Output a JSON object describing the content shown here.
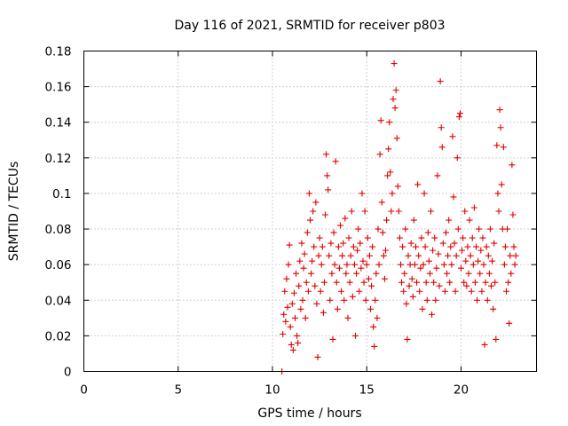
{
  "chart_data": {
    "type": "scatter",
    "title": "Day 116 of 2021, SRMTID for receiver p803",
    "xlabel": "GPS time / hours",
    "ylabel": "SRMTID / TECUs",
    "xlim": [
      0,
      24
    ],
    "ylim": [
      0,
      0.18
    ],
    "xticks": [
      0,
      5,
      10,
      15,
      20
    ],
    "yticks": [
      0,
      0.02,
      0.04,
      0.06,
      0.08,
      0.1,
      0.12,
      0.14,
      0.16,
      0.18
    ],
    "xtick_labels": [
      "0",
      "5",
      "10",
      "15",
      "20"
    ],
    "ytick_labels": [
      "0",
      "0.02",
      "0.04",
      "0.06",
      "0.08",
      "0.1",
      "0.12",
      "0.14",
      "0.16",
      "0.18"
    ],
    "grid": true,
    "marker": "+",
    "color": "#e00000",
    "series": [
      {
        "name": "SRMTID",
        "points": [
          [
            10.5,
            0.0
          ],
          [
            10.55,
            0.021
          ],
          [
            10.6,
            0.032
          ],
          [
            10.65,
            0.045
          ],
          [
            10.7,
            0.028
          ],
          [
            10.75,
            0.052
          ],
          [
            10.8,
            0.036
          ],
          [
            10.85,
            0.06
          ],
          [
            10.9,
            0.071
          ],
          [
            10.95,
            0.025
          ],
          [
            11.0,
            0.015
          ],
          [
            11.05,
            0.038
          ],
          [
            11.1,
            0.012
          ],
          [
            11.15,
            0.044
          ],
          [
            11.2,
            0.03
          ],
          [
            11.25,
            0.055
          ],
          [
            11.3,
            0.02
          ],
          [
            11.35,
            0.016
          ],
          [
            11.4,
            0.048
          ],
          [
            11.45,
            0.062
          ],
          [
            11.5,
            0.035
          ],
          [
            11.55,
            0.072
          ],
          [
            11.6,
            0.04
          ],
          [
            11.65,
            0.058
          ],
          [
            11.7,
            0.066
          ],
          [
            11.75,
            0.03
          ],
          [
            11.8,
            0.05
          ],
          [
            11.85,
            0.078
          ],
          [
            11.9,
            0.045
          ],
          [
            11.95,
            0.1
          ],
          [
            12.0,
            0.085
          ],
          [
            12.05,
            0.055
          ],
          [
            12.1,
            0.062
          ],
          [
            12.15,
            0.09
          ],
          [
            12.2,
            0.07
          ],
          [
            12.25,
            0.048
          ],
          [
            12.3,
            0.095
          ],
          [
            12.35,
            0.038
          ],
          [
            12.4,
            0.008
          ],
          [
            12.45,
            0.065
          ],
          [
            12.5,
            0.075
          ],
          [
            12.55,
            0.045
          ],
          [
            12.6,
            0.06
          ],
          [
            12.65,
            0.07
          ],
          [
            12.7,
            0.033
          ],
          [
            12.75,
            0.05
          ],
          [
            12.8,
            0.088
          ],
          [
            12.85,
            0.122
          ],
          [
            12.9,
            0.11
          ],
          [
            12.95,
            0.102
          ],
          [
            13.0,
            0.065
          ],
          [
            13.05,
            0.04
          ],
          [
            13.1,
            0.072
          ],
          [
            13.15,
            0.055
          ],
          [
            13.2,
            0.018
          ],
          [
            13.25,
            0.078
          ],
          [
            13.3,
            0.06
          ],
          [
            13.35,
            0.118
          ],
          [
            13.4,
            0.05
          ],
          [
            13.45,
            0.035
          ],
          [
            13.5,
            0.07
          ],
          [
            13.55,
            0.058
          ],
          [
            13.6,
            0.082
          ],
          [
            13.65,
            0.045
          ],
          [
            13.7,
            0.065
          ],
          [
            13.75,
            0.072
          ],
          [
            13.8,
            0.04
          ],
          [
            13.85,
            0.086
          ],
          [
            13.9,
            0.055
          ],
          [
            13.95,
            0.06
          ],
          [
            14.0,
            0.03
          ],
          [
            14.05,
            0.075
          ],
          [
            14.1,
            0.05
          ],
          [
            14.15,
            0.065
          ],
          [
            14.2,
            0.09
          ],
          [
            14.25,
            0.042
          ],
          [
            14.3,
            0.07
          ],
          [
            14.35,
            0.06
          ],
          [
            14.4,
            0.02
          ],
          [
            14.45,
            0.055
          ],
          [
            14.5,
            0.068
          ],
          [
            14.55,
            0.08
          ],
          [
            14.6,
            0.045
          ],
          [
            14.65,
            0.072
          ],
          [
            14.7,
            0.058
          ],
          [
            14.75,
            0.1
          ],
          [
            14.8,
            0.062
          ],
          [
            14.85,
            0.05
          ],
          [
            14.9,
            0.09
          ],
          [
            14.95,
            0.04
          ],
          [
            15.0,
            0.06
          ],
          [
            15.05,
            0.075
          ],
          [
            15.1,
            0.052
          ],
          [
            15.15,
            0.065
          ],
          [
            15.2,
            0.035
          ],
          [
            15.25,
            0.048
          ],
          [
            15.3,
            0.07
          ],
          [
            15.35,
            0.025
          ],
          [
            15.4,
            0.014
          ],
          [
            15.45,
            0.04
          ],
          [
            15.5,
            0.055
          ],
          [
            15.55,
            0.03
          ],
          [
            15.6,
            0.08
          ],
          [
            15.65,
            0.06
          ],
          [
            15.7,
            0.122
          ],
          [
            15.75,
            0.141
          ],
          [
            15.8,
            0.095
          ],
          [
            15.85,
            0.078
          ],
          [
            15.9,
            0.065
          ],
          [
            15.95,
            0.052
          ],
          [
            16.0,
            0.068
          ],
          [
            16.05,
            0.085
          ],
          [
            16.1,
            0.11
          ],
          [
            16.15,
            0.125
          ],
          [
            16.2,
            0.14
          ],
          [
            16.25,
            0.112
          ],
          [
            16.3,
            0.09
          ],
          [
            16.35,
            0.1
          ],
          [
            16.4,
            0.153
          ],
          [
            16.45,
            0.173
          ],
          [
            16.5,
            0.148
          ],
          [
            16.55,
            0.158
          ],
          [
            16.6,
            0.131
          ],
          [
            16.65,
            0.104
          ],
          [
            16.7,
            0.09
          ],
          [
            16.75,
            0.075
          ],
          [
            16.8,
            0.06
          ],
          [
            16.85,
            0.05
          ],
          [
            16.9,
            0.07
          ],
          [
            16.95,
            0.045
          ],
          [
            17.0,
            0.055
          ],
          [
            17.05,
            0.08
          ],
          [
            17.1,
            0.038
          ],
          [
            17.15,
            0.018
          ],
          [
            17.2,
            0.065
          ],
          [
            17.25,
            0.048
          ],
          [
            17.3,
            0.06
          ],
          [
            17.35,
            0.072
          ],
          [
            17.4,
            0.052
          ],
          [
            17.45,
            0.042
          ],
          [
            17.5,
            0.085
          ],
          [
            17.55,
            0.06
          ],
          [
            17.6,
            0.07
          ],
          [
            17.65,
            0.05
          ],
          [
            17.7,
            0.105
          ],
          [
            17.75,
            0.065
          ],
          [
            17.8,
            0.045
          ],
          [
            17.85,
            0.058
          ],
          [
            17.9,
            0.075
          ],
          [
            17.95,
            0.035
          ],
          [
            18.0,
            0.06
          ],
          [
            18.05,
            0.1
          ],
          [
            18.1,
            0.07
          ],
          [
            18.15,
            0.05
          ],
          [
            18.2,
            0.04
          ],
          [
            18.25,
            0.078
          ],
          [
            18.3,
            0.062
          ],
          [
            18.35,
            0.055
          ],
          [
            18.4,
            0.09
          ],
          [
            18.45,
            0.032
          ],
          [
            18.5,
            0.068
          ],
          [
            18.55,
            0.05
          ],
          [
            18.6,
            0.075
          ],
          [
            18.65,
            0.04
          ],
          [
            18.7,
            0.058
          ],
          [
            18.75,
            0.11
          ],
          [
            18.8,
            0.066
          ],
          [
            18.85,
            0.048
          ],
          [
            18.9,
            0.163
          ],
          [
            18.95,
            0.137
          ],
          [
            19.0,
            0.126
          ],
          [
            19.05,
            0.072
          ],
          [
            19.1,
            0.06
          ],
          [
            19.15,
            0.045
          ],
          [
            19.2,
            0.078
          ],
          [
            19.25,
            0.055
          ],
          [
            19.3,
            0.065
          ],
          [
            19.35,
            0.085
          ],
          [
            19.4,
            0.05
          ],
          [
            19.45,
            0.07
          ],
          [
            19.5,
            0.06
          ],
          [
            19.55,
            0.132
          ],
          [
            19.6,
            0.098
          ],
          [
            19.65,
            0.072
          ],
          [
            19.7,
            0.045
          ],
          [
            19.75,
            0.065
          ],
          [
            19.8,
            0.12
          ],
          [
            19.85,
            0.08
          ],
          [
            19.9,
            0.143
          ],
          [
            19.95,
            0.145
          ],
          [
            20.0,
            0.058
          ],
          [
            20.05,
            0.068
          ],
          [
            20.1,
            0.075
          ],
          [
            20.15,
            0.05
          ],
          [
            20.2,
            0.09
          ],
          [
            20.25,
            0.062
          ],
          [
            20.3,
            0.048
          ],
          [
            20.35,
            0.07
          ],
          [
            20.4,
            0.055
          ],
          [
            20.45,
            0.085
          ],
          [
            20.5,
            0.065
          ],
          [
            20.55,
            0.045
          ],
          [
            20.6,
            0.075
          ],
          [
            20.65,
            0.06
          ],
          [
            20.7,
            0.092
          ],
          [
            20.75,
            0.05
          ],
          [
            20.8,
            0.07
          ],
          [
            20.85,
            0.04
          ],
          [
            20.9,
            0.062
          ],
          [
            20.95,
            0.08
          ],
          [
            21.0,
            0.055
          ],
          [
            21.05,
            0.068
          ],
          [
            21.1,
            0.045
          ],
          [
            21.15,
            0.075
          ],
          [
            21.2,
            0.06
          ],
          [
            21.25,
            0.015
          ],
          [
            21.3,
            0.05
          ],
          [
            21.35,
            0.07
          ],
          [
            21.4,
            0.04
          ],
          [
            21.45,
            0.065
          ],
          [
            21.5,
            0.055
          ],
          [
            21.55,
            0.08
          ],
          [
            21.6,
            0.048
          ],
          [
            21.65,
            0.062
          ],
          [
            21.7,
            0.035
          ],
          [
            21.75,
            0.072
          ],
          [
            21.8,
            0.05
          ],
          [
            21.85,
            0.018
          ],
          [
            21.9,
            0.127
          ],
          [
            21.95,
            0.1
          ],
          [
            22.0,
            0.09
          ],
          [
            22.05,
            0.147
          ],
          [
            22.1,
            0.137
          ],
          [
            22.15,
            0.105
          ],
          [
            22.2,
            0.08
          ],
          [
            22.25,
            0.126
          ],
          [
            22.3,
            0.06
          ],
          [
            22.35,
            0.07
          ],
          [
            22.4,
            0.045
          ],
          [
            22.45,
            0.08
          ],
          [
            22.5,
            0.05
          ],
          [
            22.55,
            0.027
          ],
          [
            22.6,
            0.065
          ],
          [
            22.65,
            0.055
          ],
          [
            22.7,
            0.116
          ],
          [
            22.75,
            0.088
          ],
          [
            22.8,
            0.07
          ],
          [
            22.85,
            0.06
          ],
          [
            22.9,
            0.065
          ]
        ]
      }
    ]
  }
}
